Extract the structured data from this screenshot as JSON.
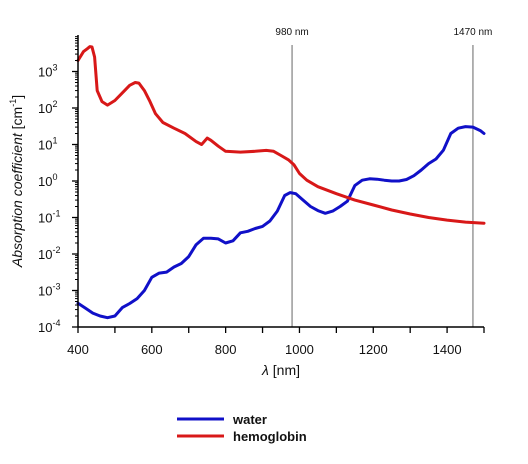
{
  "chart_data": {
    "type": "line",
    "xlabel_italic": "λ",
    "xlabel_rest": " [nm]",
    "ylabel_italic": "Absorption coefficient",
    "ylabel_unit": " [cm",
    "ylabel_unit_exp": "-1",
    "ylabel_unit_close": "]",
    "xlim": [
      400,
      1500
    ],
    "ylim": [
      0.0001,
      10000
    ],
    "yscale": "log",
    "grid": false,
    "legend_placement": "bottom-left below plot",
    "x_ticks": [
      {
        "value": 400,
        "label": "400"
      },
      {
        "value": 600,
        "label": "600"
      },
      {
        "value": 800,
        "label": "800"
      },
      {
        "value": 1000,
        "label": "1000"
      },
      {
        "value": 1200,
        "label": "1200"
      },
      {
        "value": 1400,
        "label": "1400"
      }
    ],
    "y_ticks": [
      {
        "exp": -4,
        "base": "10",
        "sup": "-4"
      },
      {
        "exp": -3,
        "base": "10",
        "sup": "-3"
      },
      {
        "exp": -2,
        "base": "10",
        "sup": "-2"
      },
      {
        "exp": -1,
        "base": "10",
        "sup": "-1"
      },
      {
        "exp": 0,
        "base": "10",
        "sup": "0"
      },
      {
        "exp": 1,
        "base": "10",
        "sup": "1"
      },
      {
        "exp": 2,
        "base": "10",
        "sup": "2"
      },
      {
        "exp": 3,
        "base": "10",
        "sup": "3"
      }
    ],
    "reference_lines": [
      {
        "x": 980,
        "label": "980 nm",
        "color": "#999999"
      },
      {
        "x": 1470,
        "label": "1470 nm",
        "color": "#999999"
      }
    ],
    "series": [
      {
        "name": "water",
        "color": "#1010c8",
        "points": [
          [
            400,
            0.00045
          ],
          [
            420,
            0.00033
          ],
          [
            440,
            0.00024
          ],
          [
            460,
            0.0002
          ],
          [
            480,
            0.00018
          ],
          [
            500,
            0.0002
          ],
          [
            520,
            0.00034
          ],
          [
            540,
            0.00044
          ],
          [
            560,
            0.0006
          ],
          [
            580,
            0.001
          ],
          [
            600,
            0.0023
          ],
          [
            620,
            0.003
          ],
          [
            640,
            0.0032
          ],
          [
            660,
            0.0044
          ],
          [
            680,
            0.0055
          ],
          [
            700,
            0.0085
          ],
          [
            720,
            0.018
          ],
          [
            740,
            0.027
          ],
          [
            760,
            0.027
          ],
          [
            780,
            0.026
          ],
          [
            800,
            0.02
          ],
          [
            820,
            0.023
          ],
          [
            840,
            0.038
          ],
          [
            860,
            0.042
          ],
          [
            880,
            0.05
          ],
          [
            900,
            0.057
          ],
          [
            920,
            0.08
          ],
          [
            940,
            0.15
          ],
          [
            960,
            0.4
          ],
          [
            975,
            0.48
          ],
          [
            990,
            0.45
          ],
          [
            1010,
            0.3
          ],
          [
            1030,
            0.2
          ],
          [
            1050,
            0.155
          ],
          [
            1070,
            0.13
          ],
          [
            1090,
            0.15
          ],
          [
            1110,
            0.2
          ],
          [
            1130,
            0.28
          ],
          [
            1150,
            0.75
          ],
          [
            1170,
            1.05
          ],
          [
            1190,
            1.15
          ],
          [
            1210,
            1.12
          ],
          [
            1230,
            1.05
          ],
          [
            1250,
            1.0
          ],
          [
            1270,
            1.0
          ],
          [
            1290,
            1.1
          ],
          [
            1310,
            1.4
          ],
          [
            1330,
            2.0
          ],
          [
            1350,
            3.0
          ],
          [
            1370,
            4.0
          ],
          [
            1390,
            7.0
          ],
          [
            1410,
            20.0
          ],
          [
            1430,
            28.0
          ],
          [
            1450,
            31.0
          ],
          [
            1470,
            30.0
          ],
          [
            1490,
            24.0
          ],
          [
            1500,
            20.0
          ]
        ]
      },
      {
        "name": "hemoglobin",
        "color": "#d81818",
        "points": [
          [
            400,
            2000
          ],
          [
            415,
            3500
          ],
          [
            425,
            4200
          ],
          [
            432,
            4800
          ],
          [
            438,
            4700
          ],
          [
            445,
            2500
          ],
          [
            452,
            300
          ],
          [
            465,
            150
          ],
          [
            480,
            120
          ],
          [
            500,
            160
          ],
          [
            520,
            260
          ],
          [
            540,
            420
          ],
          [
            555,
            500
          ],
          [
            565,
            480
          ],
          [
            580,
            300
          ],
          [
            595,
            150
          ],
          [
            610,
            70
          ],
          [
            630,
            40
          ],
          [
            660,
            28
          ],
          [
            690,
            20
          ],
          [
            720,
            12
          ],
          [
            735,
            10
          ],
          [
            750,
            15
          ],
          [
            760,
            13
          ],
          [
            780,
            9
          ],
          [
            800,
            6.5
          ],
          [
            840,
            6.2
          ],
          [
            880,
            6.5
          ],
          [
            910,
            6.9
          ],
          [
            930,
            6.5
          ],
          [
            950,
            5.0
          ],
          [
            970,
            3.8
          ],
          [
            985,
            2.8
          ],
          [
            1000,
            1.6
          ],
          [
            1020,
            1.05
          ],
          [
            1050,
            0.7
          ],
          [
            1100,
            0.45
          ],
          [
            1150,
            0.3
          ],
          [
            1200,
            0.22
          ],
          [
            1250,
            0.16
          ],
          [
            1300,
            0.125
          ],
          [
            1350,
            0.1
          ],
          [
            1400,
            0.085
          ],
          [
            1450,
            0.075
          ],
          [
            1500,
            0.07
          ]
        ]
      }
    ],
    "legend": [
      {
        "name": "water",
        "color": "#1010c8"
      },
      {
        "name": "hemoglobin",
        "color": "#d81818"
      }
    ]
  }
}
